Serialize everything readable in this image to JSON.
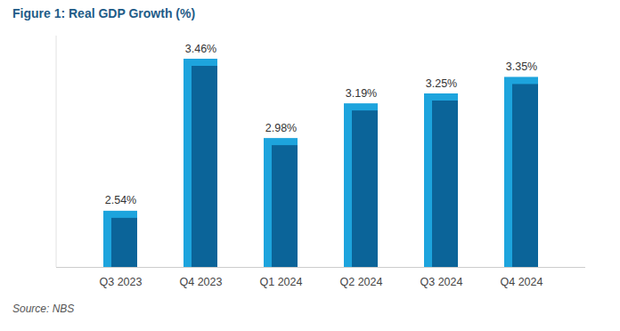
{
  "chart_data": {
    "type": "bar",
    "title": "Figure 1: Real GDP Growth (%)",
    "categories": [
      "Q3 2023",
      "Q4 2023",
      "Q1 2024",
      "Q2 2024",
      "Q3 2024",
      "Q4 2024"
    ],
    "values": [
      2.54,
      3.46,
      2.98,
      3.19,
      3.25,
      3.35
    ],
    "value_labels": [
      "2.54%",
      "3.46%",
      "2.98%",
      "3.19%",
      "3.25%",
      "3.35%"
    ],
    "color": "#0b6499",
    "ylim": [
      2.2,
      3.6
    ],
    "yticks": [],
    "grid": false,
    "data_labels": true,
    "tick_labels": "x",
    "source": "Source: NBS"
  }
}
